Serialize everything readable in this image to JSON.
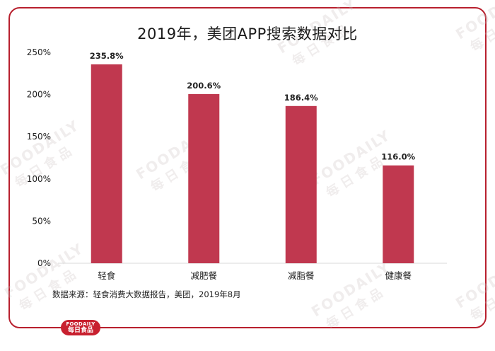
{
  "chart_data": {
    "type": "bar",
    "title": "2019年，美团APP搜索数据对比",
    "categories": [
      "轻食",
      "减肥餐",
      "减脂餐",
      "健康餐"
    ],
    "values": [
      235.8,
      200.6,
      186.4,
      116.0
    ],
    "data_labels": [
      "235.8%",
      "200.6%",
      "186.4%",
      "116.0%"
    ],
    "yticks": [
      "0%",
      "50%",
      "100%",
      "150%",
      "200%",
      "250%"
    ],
    "ylim": [
      0,
      250
    ],
    "grid": false,
    "legend": "none",
    "bar_color": "#c0384f",
    "axis_color": "#d9d9d9"
  },
  "source_text": "数据来源：轻食消费大数据报告，美团，2019年8月",
  "brand": {
    "name_en": "FOODAILY",
    "name_cn": "每日食品",
    "color": "#c8202f"
  },
  "frame_color": "#b8202e",
  "watermark": {
    "en": "FOODAILY",
    "cn": "每日食品"
  }
}
